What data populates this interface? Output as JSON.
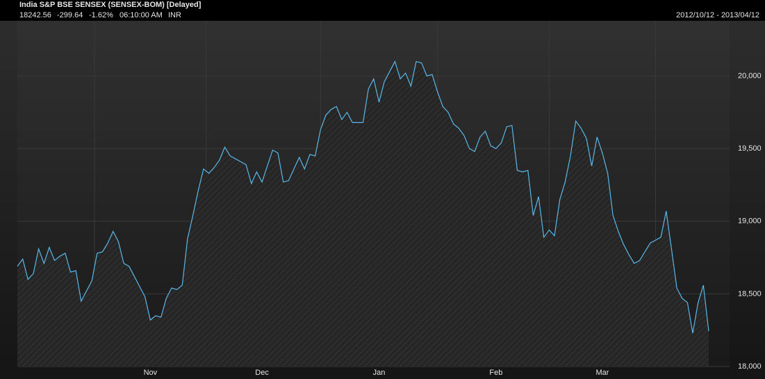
{
  "chart_data": {
    "type": "area",
    "title": "India S&P BSE SENSEX (SENSEX-BOM) [Delayed]",
    "quote": [
      "18242.56",
      "-299.64",
      "-1.62%",
      "06:10:00 AM",
      "INR"
    ],
    "date_range": "2012/10/12 - 2013/04/12",
    "color": "#5ab8ea",
    "grid": true,
    "ylim": [
      18000,
      20380
    ],
    "yticks": [
      {
        "value": 18000,
        "label": "18,000"
      },
      {
        "value": 18500,
        "label": "18,500"
      },
      {
        "value": 19000,
        "label": "19,000"
      },
      {
        "value": 19500,
        "label": "19,500"
      },
      {
        "value": 20000,
        "label": "20,000"
      }
    ],
    "categories": [
      null,
      null,
      null,
      null,
      null,
      null,
      null,
      null,
      null,
      null,
      null,
      null,
      null,
      null,
      null,
      null,
      null,
      null,
      null,
      null,
      null,
      null,
      null,
      null,
      null,
      "Nov",
      null,
      null,
      null,
      null,
      null,
      null,
      null,
      null,
      null,
      null,
      null,
      null,
      null,
      null,
      null,
      null,
      null,
      null,
      null,
      null,
      "Dec",
      null,
      null,
      null,
      null,
      null,
      null,
      null,
      null,
      null,
      null,
      null,
      null,
      null,
      null,
      null,
      null,
      null,
      null,
      null,
      null,
      null,
      "Jan",
      null,
      null,
      null,
      null,
      null,
      null,
      null,
      null,
      null,
      null,
      null,
      null,
      null,
      null,
      null,
      null,
      null,
      null,
      null,
      null,
      null,
      "Feb",
      null,
      null,
      null,
      null,
      null,
      null,
      null,
      null,
      null,
      null,
      null,
      null,
      null,
      null,
      null,
      null,
      null,
      null,
      null,
      "Mar",
      null,
      null,
      null,
      null,
      null,
      null,
      null,
      null,
      null,
      null,
      null,
      null,
      null,
      null,
      null,
      null,
      null,
      null,
      null,
      null
    ],
    "values": [
      18690,
      18740,
      18600,
      18640,
      18810,
      18710,
      18820,
      18730,
      18760,
      18780,
      18650,
      18660,
      18450,
      18520,
      18590,
      18780,
      18790,
      18850,
      18930,
      18860,
      18710,
      18690,
      18620,
      18550,
      18480,
      18320,
      18350,
      18340,
      18470,
      18540,
      18530,
      18560,
      18880,
      19040,
      19210,
      19360,
      19330,
      19370,
      19420,
      19510,
      19450,
      19430,
      19410,
      19390,
      19260,
      19340,
      19270,
      19380,
      19490,
      19470,
      19270,
      19280,
      19360,
      19440,
      19360,
      19460,
      19450,
      19630,
      19730,
      19770,
      19790,
      19700,
      19750,
      19680,
      19680,
      19680,
      19910,
      19980,
      19820,
      19960,
      20030,
      20100,
      19980,
      20020,
      19930,
      20100,
      20090,
      20000,
      20010,
      19890,
      19790,
      19750,
      19670,
      19640,
      19590,
      19500,
      19480,
      19580,
      19620,
      19520,
      19500,
      19540,
      19650,
      19660,
      19350,
      19340,
      19350,
      19040,
      19170,
      18890,
      18940,
      18900,
      19150,
      19270,
      19450,
      19690,
      19640,
      19570,
      19380,
      19580,
      19470,
      19330,
      19040,
      18930,
      18840,
      18770,
      18710,
      18730,
      18790,
      18850,
      18870,
      18890,
      19070,
      18810,
      18540,
      18470,
      18440,
      18230,
      18440,
      18560,
      18242.56
    ]
  }
}
